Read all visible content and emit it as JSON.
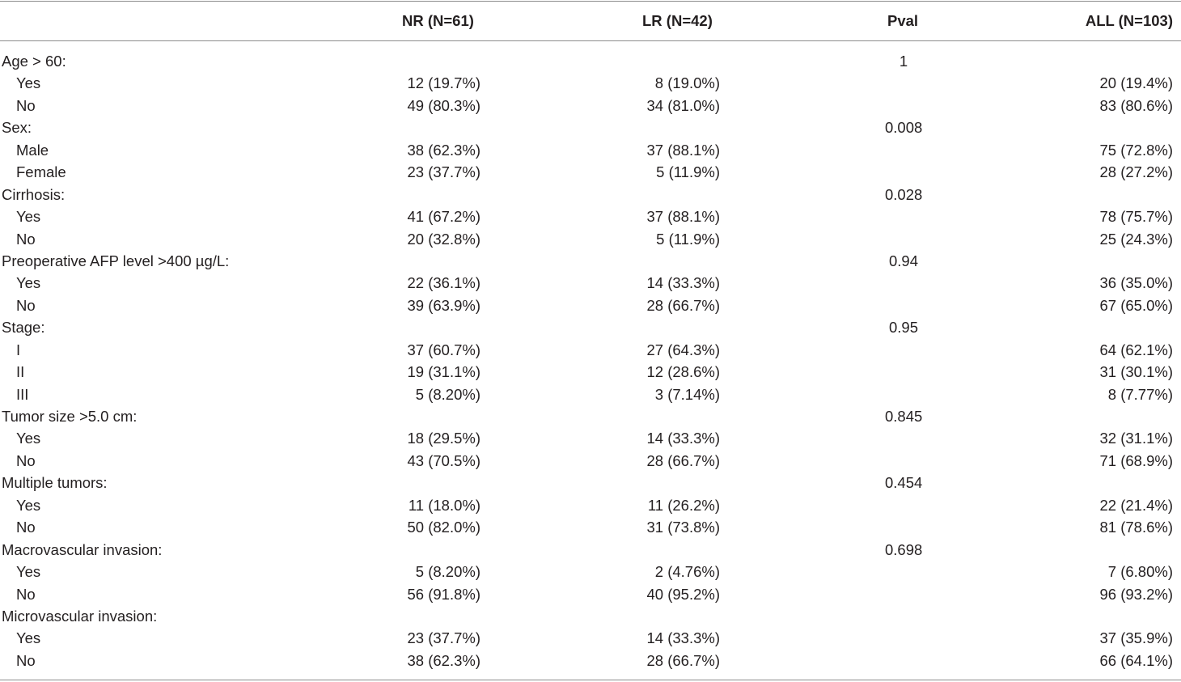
{
  "header": {
    "col_nr": "NR (N=61)",
    "col_lr": "LR (N=42)",
    "col_pval": "Pval",
    "col_all": "ALL (N=103)"
  },
  "rows": [
    {
      "label": "Age > 60:",
      "nr": "",
      "lr": "",
      "pval": "1",
      "all": ""
    },
    {
      "label": "Yes",
      "nr": "12 (19.7%)",
      "lr": "8 (19.0%)",
      "pval": "",
      "all": "20 (19.4%)"
    },
    {
      "label": "No",
      "nr": "49 (80.3%)",
      "lr": "34 (81.0%)",
      "pval": "",
      "all": "83 (80.6%)"
    },
    {
      "label": "Sex:",
      "nr": "",
      "lr": "",
      "pval": "0.008",
      "all": ""
    },
    {
      "label": "Male",
      "nr": "38 (62.3%)",
      "lr": "37 (88.1%)",
      "pval": "",
      "all": "75 (72.8%)"
    },
    {
      "label": "Female",
      "nr": "23 (37.7%)",
      "lr": "5 (11.9%)",
      "pval": "",
      "all": "28 (27.2%)"
    },
    {
      "label": "Cirrhosis:",
      "nr": "",
      "lr": "",
      "pval": "0.028",
      "all": ""
    },
    {
      "label": "Yes",
      "nr": "41 (67.2%)",
      "lr": "37 (88.1%)",
      "pval": "",
      "all": "78 (75.7%)"
    },
    {
      "label": "No",
      "nr": "20 (32.8%)",
      "lr": "5 (11.9%)",
      "pval": "",
      "all": "25 (24.3%)"
    },
    {
      "label": "Preoperative AFP level >400 µg/L:",
      "nr": "",
      "lr": "",
      "pval": "0.94",
      "all": ""
    },
    {
      "label": "Yes",
      "nr": "22 (36.1%)",
      "lr": "14 (33.3%)",
      "pval": "",
      "all": "36 (35.0%)"
    },
    {
      "label": "No",
      "nr": "39 (63.9%)",
      "lr": "28 (66.7%)",
      "pval": "",
      "all": "67 (65.0%)"
    },
    {
      "label": "Stage:",
      "nr": "",
      "lr": "",
      "pval": "0.95",
      "all": ""
    },
    {
      "label": "I",
      "nr": "37 (60.7%)",
      "lr": "27 (64.3%)",
      "pval": "",
      "all": "64 (62.1%)"
    },
    {
      "label": "II",
      "nr": "19 (31.1%)",
      "lr": "12 (28.6%)",
      "pval": "",
      "all": "31 (30.1%)"
    },
    {
      "label": "III",
      "nr": "5 (8.20%)",
      "lr": "3 (7.14%)",
      "pval": "",
      "all": "8 (7.77%)"
    },
    {
      "label": "Tumor size >5.0 cm:",
      "nr": "",
      "lr": "",
      "pval": "0.845",
      "all": ""
    },
    {
      "label": "Yes",
      "nr": "18 (29.5%)",
      "lr": "14 (33.3%)",
      "pval": "",
      "all": "32 (31.1%)"
    },
    {
      "label": "No",
      "nr": "43 (70.5%)",
      "lr": "28 (66.7%)",
      "pval": "",
      "all": "71 (68.9%)"
    },
    {
      "label": "Multiple tumors:",
      "nr": "",
      "lr": "",
      "pval": "0.454",
      "all": ""
    },
    {
      "label": "Yes",
      "nr": "11 (18.0%)",
      "lr": "11 (26.2%)",
      "pval": "",
      "all": "22 (21.4%)"
    },
    {
      "label": "No",
      "nr": "50 (82.0%)",
      "lr": "31 (73.8%)",
      "pval": "",
      "all": "81 (78.6%)"
    },
    {
      "label": "Macrovascular invasion:",
      "nr": "",
      "lr": "",
      "pval": "0.698",
      "all": ""
    },
    {
      "label": "Yes",
      "nr": "5 (8.20%)",
      "lr": "2 (4.76%)",
      "pval": "",
      "all": "7 (6.80%)"
    },
    {
      "label": "No",
      "nr": "56 (91.8%)",
      "lr": "40 (95.2%)",
      "pval": "",
      "all": "96 (93.2%)"
    },
    {
      "label": "Microvascular invasion:",
      "nr": "",
      "lr": "",
      "pval": "",
      "all": ""
    },
    {
      "label": "Yes",
      "nr": "23 (37.7%)",
      "lr": "14 (33.3%)",
      "pval": "",
      "all": "37 (35.9%)"
    },
    {
      "label": "No",
      "nr": "38 (62.3%)",
      "lr": "28 (66.7%)",
      "pval": "",
      "all": "66 (64.1%)"
    }
  ]
}
